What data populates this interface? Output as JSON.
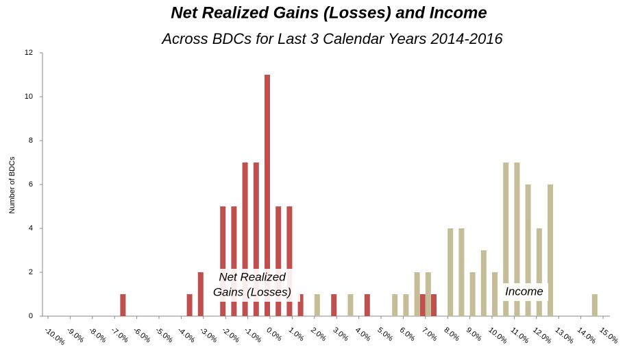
{
  "chart_data": {
    "type": "bar",
    "title": "Net Realized Gains (Losses) and Income",
    "subtitle": "Across BDCs for Last 3 Calendar Years 2014-2016",
    "y_label": "Number of BDCs",
    "categories": [
      "-10.0%",
      null,
      "-9.0%",
      null,
      "-8.0%",
      null,
      "-7.0%",
      null,
      "-6.0%",
      null,
      "-5.0%",
      null,
      "-4.0%",
      null,
      "-3.0%",
      null,
      "-2.0%",
      null,
      "-1.0%",
      null,
      "0.0%",
      null,
      "1.0%",
      null,
      "2.0%",
      null,
      "3.0%",
      null,
      "4.0%",
      null,
      "5.0%",
      null,
      "6.0%",
      null,
      "7.0%",
      null,
      "8.0%",
      null,
      "9.0%",
      null,
      "10.0%",
      null,
      "11.0%",
      null,
      "12.0%",
      null,
      "13.0%",
      null,
      "14.0%",
      null,
      "15.0%"
    ],
    "series": [
      {
        "name": "Net Realized Gains (Losses)",
        "color": "#c0504d",
        "values": [
          0,
          0,
          0,
          0,
          0,
          0,
          0,
          1,
          0,
          0,
          0,
          0,
          0,
          1,
          2,
          0,
          5,
          5,
          7,
          7,
          11,
          5,
          5,
          1,
          0,
          0,
          1,
          0,
          0,
          1,
          0,
          0,
          0,
          0,
          1,
          1,
          0,
          0,
          0,
          0,
          0,
          0,
          0,
          0,
          0,
          0,
          0,
          0,
          0,
          0,
          0
        ]
      },
      {
        "name": "Income",
        "color": "#c4bd97",
        "values": [
          0,
          0,
          0,
          0,
          0,
          0,
          0,
          0,
          0,
          0,
          0,
          0,
          0,
          0,
          0,
          0,
          0,
          0,
          0,
          0,
          0,
          0,
          0,
          0,
          1,
          0,
          0,
          1,
          0,
          0,
          0,
          1,
          1,
          2,
          2,
          0,
          4,
          4,
          2,
          3,
          2,
          7,
          7,
          6,
          4,
          6,
          0,
          0,
          0,
          1,
          0
        ]
      }
    ],
    "annotations": [
      [
        "Net Realized",
        "Gains (Losses)"
      ],
      [
        "Income"
      ]
    ],
    "ylim": [
      0,
      12
    ],
    "yticks": [
      0,
      2,
      4,
      6,
      8,
      10,
      12
    ],
    "grid": false
  }
}
